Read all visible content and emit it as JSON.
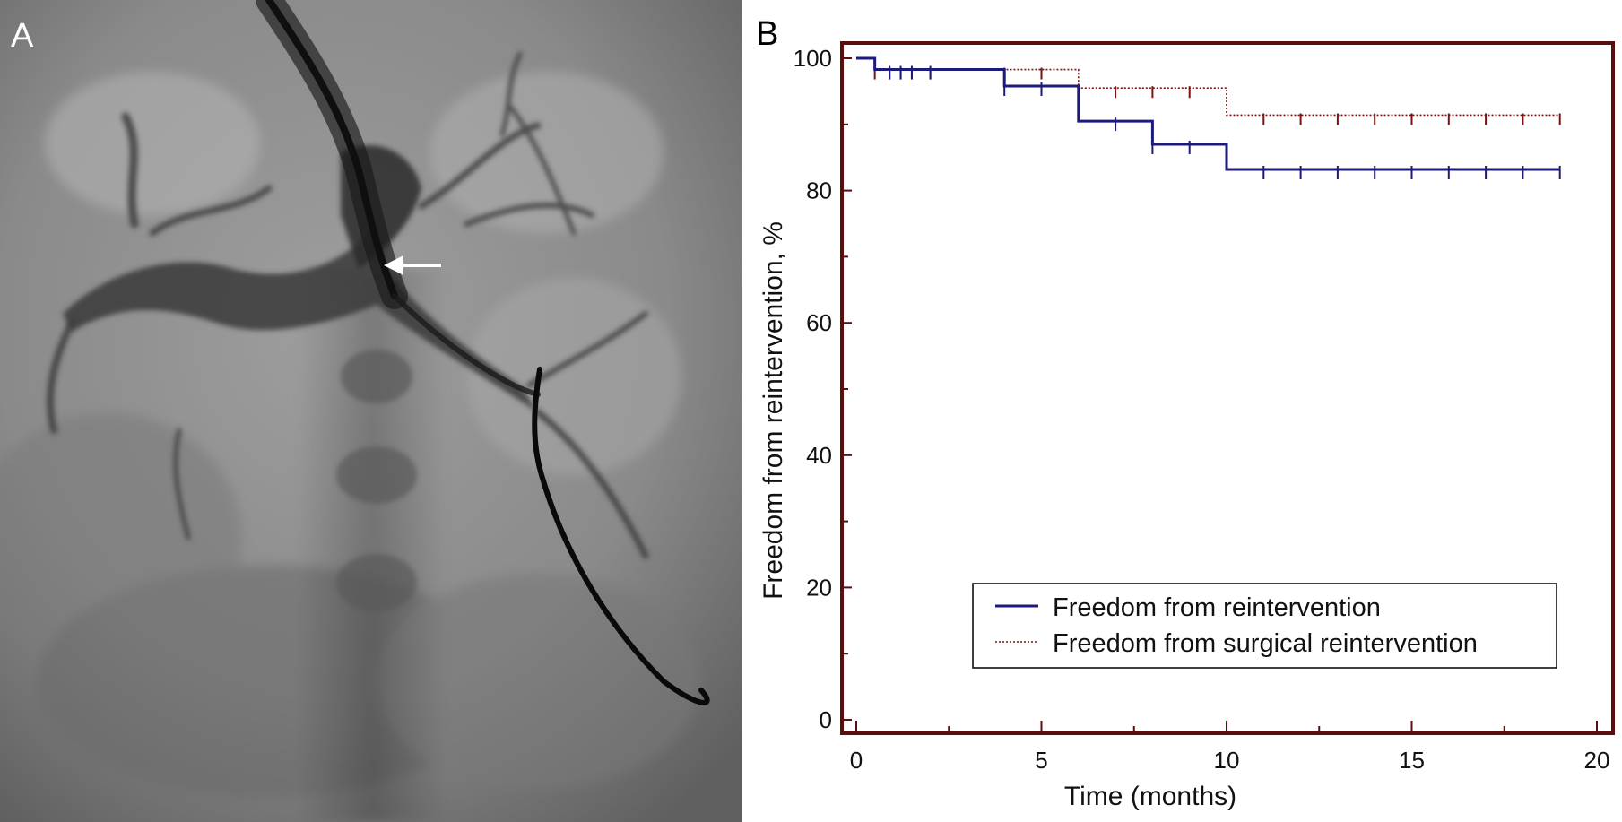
{
  "panels": {
    "a_label": "A",
    "b_label": "B"
  },
  "chart_data": {
    "type": "line",
    "step": true,
    "xlabel": "Time (months)",
    "ylabel": "Freedom from reintervention, %",
    "xlim": [
      0,
      20
    ],
    "ylim": [
      0,
      100
    ],
    "xticks": [
      0,
      5,
      10,
      15,
      20
    ],
    "yticks": [
      0,
      20,
      40,
      60,
      80,
      100
    ],
    "grid": false,
    "legend_position": "lower-right",
    "series": [
      {
        "name": "Freedom from reintervention",
        "color": "#1c1a7a",
        "style": "solid",
        "steps": [
          [
            0,
            100
          ],
          [
            0.5,
            98.3
          ],
          [
            4,
            95.8
          ],
          [
            6,
            90.5
          ],
          [
            8,
            87.0
          ],
          [
            10,
            83.2
          ],
          [
            19,
            83.2
          ]
        ],
        "censored": [
          0.9,
          1.2,
          1.5,
          2.0,
          4.0,
          5.0,
          7.0,
          8.0,
          9.0,
          11.0,
          12.0,
          13.0,
          14.0,
          15.0,
          16.0,
          17.0,
          18.0,
          19.0
        ]
      },
      {
        "name": "Freedom from surgical reintervention",
        "color": "#7a1212",
        "style": "dotted",
        "steps": [
          [
            0,
            100
          ],
          [
            0.5,
            98.3
          ],
          [
            6,
            95.5
          ],
          [
            10,
            91.4
          ],
          [
            19,
            91.4
          ]
        ],
        "censored": [
          0.5,
          0.9,
          1.2,
          1.5,
          2.0,
          4.0,
          5.0,
          7.0,
          8.0,
          9.0,
          11.0,
          12.0,
          13.0,
          14.0,
          15.0,
          16.0,
          17.0,
          18.0,
          19.0
        ]
      }
    ]
  }
}
